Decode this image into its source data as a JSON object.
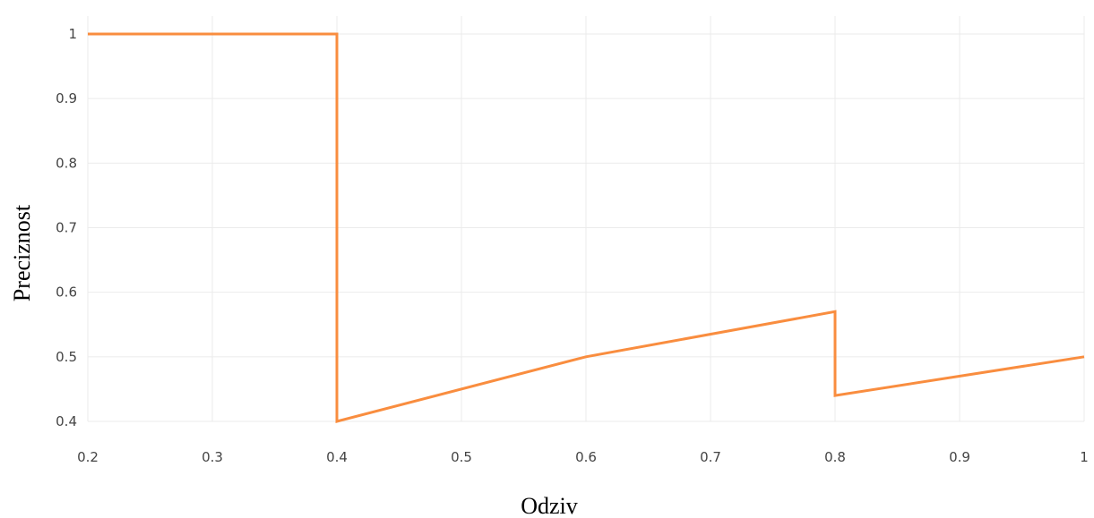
{
  "chart_data": {
    "type": "line",
    "title": "",
    "xlabel": "Odziv",
    "ylabel": "Preciznost",
    "xlim": [
      0.2,
      1
    ],
    "ylim": [
      0.4,
      1
    ],
    "grid": true,
    "x_ticks": [
      "0.2",
      "0.3",
      "0.4",
      "0.5",
      "0.6",
      "0.7",
      "0.8",
      "0.9",
      "1"
    ],
    "y_ticks": [
      "0.4",
      "0.5",
      "0.6",
      "0.7",
      "0.8",
      "0.9",
      "1"
    ],
    "series": [
      {
        "color": "#f98d3f",
        "points": [
          {
            "x": 0.2,
            "y": 1.0
          },
          {
            "x": 0.4,
            "y": 1.0
          },
          {
            "x": 0.4,
            "y": 0.4
          },
          {
            "x": 0.6,
            "y": 0.5
          },
          {
            "x": 0.8,
            "y": 0.57
          },
          {
            "x": 0.8,
            "y": 0.44
          },
          {
            "x": 1.0,
            "y": 0.5
          }
        ]
      }
    ]
  }
}
